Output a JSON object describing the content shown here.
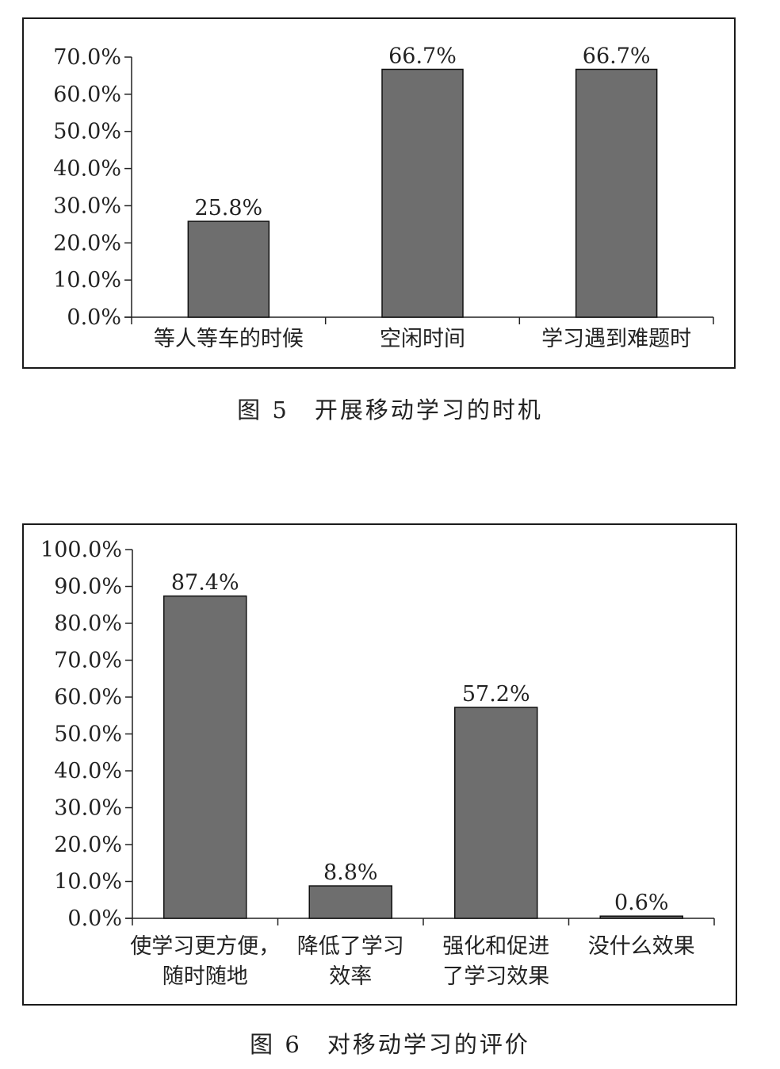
{
  "chart_data": [
    {
      "type": "bar",
      "categories": [
        "等人等车的时候",
        "空闲时间",
        "学习遇到难题时"
      ],
      "values": [
        25.8,
        66.7,
        66.7
      ],
      "value_labels": [
        "25.8%",
        "66.7%",
        "66.7%"
      ],
      "yticks": [
        "0.0%",
        "10.0%",
        "20.0%",
        "30.0%",
        "40.0%",
        "50.0%",
        "60.0%",
        "70.0%"
      ],
      "ylim": [
        0,
        70
      ],
      "bar_color": "#6e6e6e",
      "grid": false,
      "caption": "图 5　开展移动学习的时机"
    },
    {
      "type": "bar",
      "categories": [
        [
          "使学习更方便，",
          "随时随地"
        ],
        [
          "降低了学习",
          "效率"
        ],
        [
          "强化和促进",
          "了学习效果"
        ],
        [
          "没什么效果"
        ]
      ],
      "values": [
        87.4,
        8.8,
        57.2,
        0.6
      ],
      "value_labels": [
        "87.4%",
        "8.8%",
        "57.2%",
        "0.6%"
      ],
      "yticks": [
        "0.0%",
        "10.0%",
        "20.0%",
        "30.0%",
        "40.0%",
        "50.0%",
        "60.0%",
        "70.0%",
        "80.0%",
        "90.0%",
        "100.0%"
      ],
      "ylim": [
        0,
        100
      ],
      "bar_color": "#6e6e6e",
      "grid": false,
      "caption": "图 6　对移动学习的评价"
    }
  ]
}
